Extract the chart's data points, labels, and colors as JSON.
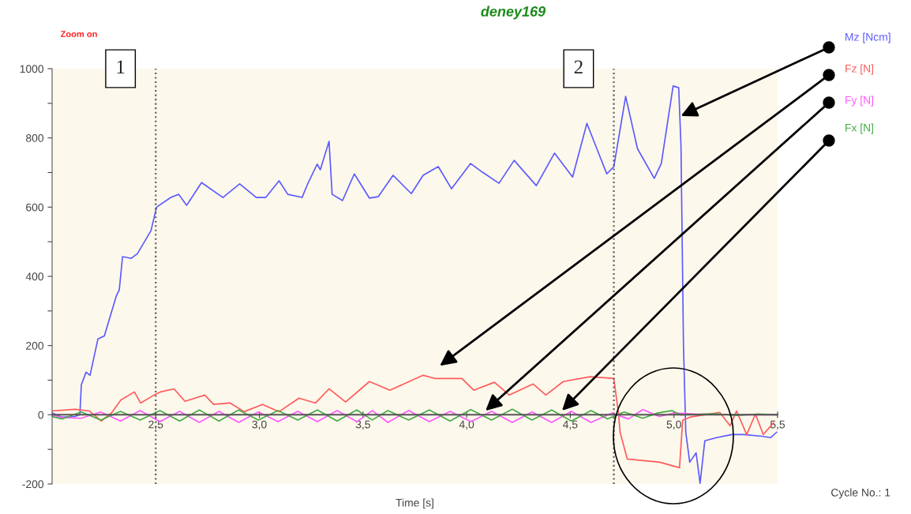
{
  "chart_data": {
    "type": "line",
    "title": "deney169",
    "xlabel": "Time [s]",
    "annotations": [
      "Zoom on",
      "Cycle No.: 1",
      {
        "text": "1",
        "x": 2.5,
        "y": 1000
      },
      {
        "text": "2",
        "x": 4.71,
        "y": 1000
      }
    ],
    "xlim": [
      2.0,
      5.5
    ],
    "xticks": [
      {
        "value": 2.5,
        "label": "2,5"
      },
      {
        "value": 3.0,
        "label": "3,0"
      },
      {
        "value": 3.5,
        "label": "3,5"
      },
      {
        "value": 4.0,
        "label": "4,0"
      },
      {
        "value": 4.5,
        "label": "4,5"
      },
      {
        "value": 5.0,
        "label": "5,0"
      },
      {
        "value": 5.5,
        "label": "5,5"
      }
    ],
    "ylim": [
      -200,
      1000
    ],
    "yticks": [
      -200,
      {
        "value": -100,
        "label": null
      },
      0,
      {
        "value": 100,
        "label": null
      },
      200,
      {
        "value": 300,
        "label": null
      },
      400,
      {
        "value": 500,
        "label": null
      },
      600,
      {
        "value": 700,
        "label": null
      },
      800,
      {
        "value": 900,
        "label": null
      },
      1000
    ],
    "grid": false,
    "legend": "right",
    "line_style": "solid",
    "marker": "none",
    "ref_lines": [
      {
        "axis": "x",
        "value": 2.5,
        "line_style": "dotted",
        "color": "#555555"
      },
      {
        "axis": "x",
        "value": 4.71,
        "line_style": "dotted",
        "color": "#555555"
      }
    ],
    "series": [
      {
        "name": "Mz [Ncm]",
        "color": "#5a5aff",
        "x": [
          2.0,
          2.05,
          2.11,
          2.134,
          2.141,
          2.164,
          2.183,
          2.221,
          2.252,
          2.309,
          2.324,
          2.34,
          2.382,
          2.412,
          2.477,
          2.504,
          2.573,
          2.611,
          2.649,
          2.721,
          2.824,
          2.905,
          2.985,
          3.031,
          3.095,
          3.137,
          3.206,
          3.233,
          3.279,
          3.294,
          3.336,
          3.351,
          3.401,
          3.458,
          3.531,
          3.573,
          3.645,
          3.733,
          3.79,
          3.863,
          3.927,
          4.019,
          4.076,
          4.156,
          4.229,
          4.336,
          4.424,
          4.511,
          4.58,
          4.676,
          4.71,
          4.767,
          4.824,
          4.905,
          4.939,
          4.996,
          5.023,
          5.034,
          5.046,
          5.057,
          5.076,
          5.107,
          5.126,
          5.149,
          5.206,
          5.279,
          5.336,
          5.424,
          5.466,
          5.496
        ],
        "values": [
          5,
          -7,
          -5,
          0,
          87,
          123,
          114,
          219,
          228,
          342,
          361,
          457,
          452,
          466,
          532,
          600,
          628,
          637,
          605,
          671,
          628,
          667,
          628,
          628,
          676,
          637,
          628,
          667,
          724,
          708,
          790,
          637,
          619,
          696,
          626,
          630,
          692,
          639,
          692,
          717,
          653,
          726,
          701,
          669,
          735,
          662,
          756,
          687,
          842,
          696,
          717,
          920,
          769,
          683,
          726,
          950,
          945,
          776,
          201,
          -50,
          -137,
          -110,
          -198,
          -75,
          -66,
          -57,
          -57,
          -62,
          -66,
          -50
        ]
      },
      {
        "name": "Fz [N]",
        "color": "#ff5a5a",
        "x": [
          2.0,
          2.11,
          2.18,
          2.237,
          2.286,
          2.332,
          2.397,
          2.427,
          2.492,
          2.523,
          2.588,
          2.641,
          2.737,
          2.779,
          2.859,
          2.927,
          3.015,
          3.095,
          3.191,
          3.271,
          3.336,
          3.416,
          3.531,
          3.63,
          3.79,
          3.847,
          3.977,
          4.034,
          4.134,
          4.206,
          4.321,
          4.382,
          4.466,
          4.595,
          4.71,
          4.733,
          4.74,
          4.775,
          4.931,
          5.027,
          5.042,
          5.076,
          5.221,
          5.271,
          5.302,
          5.351,
          5.393,
          5.431,
          5.481
        ],
        "values": [
          11,
          16,
          11,
          -18,
          5,
          43,
          66,
          34,
          57,
          66,
          75,
          39,
          57,
          30,
          34,
          9,
          30,
          9,
          48,
          34,
          75,
          37,
          96,
          71,
          114,
          105,
          105,
          71,
          94,
          57,
          89,
          57,
          96,
          110,
          105,
          2,
          -50,
          -128,
          -137,
          -153,
          -16,
          -7,
          7,
          -32,
          11,
          -57,
          2,
          -57,
          -23
        ]
      },
      {
        "name": "Fy [N]",
        "color": "#ff55ff",
        "x": [
          2.0,
          2.05,
          2.14,
          2.235,
          2.33,
          2.425,
          2.52,
          2.615,
          2.71,
          2.805,
          2.9,
          2.995,
          3.09,
          3.185,
          3.28,
          3.375,
          3.47,
          3.545,
          3.62,
          3.72,
          3.82,
          3.92,
          4.02,
          4.12,
          4.22,
          4.315,
          4.41,
          4.505,
          4.6,
          4.7,
          4.78,
          4.85,
          4.93,
          5.0,
          5.1,
          5.3,
          5.5
        ],
        "values": [
          0,
          -8,
          -10,
          8,
          -18,
          12,
          -20,
          10,
          -22,
          10,
          -22,
          8,
          -20,
          10,
          -20,
          12,
          -20,
          12,
          -22,
          12,
          -20,
          10,
          -20,
          10,
          -22,
          8,
          -22,
          10,
          -22,
          5,
          -12,
          15,
          -5,
          5,
          2,
          0,
          0
        ]
      },
      {
        "name": "Fx [N]",
        "color": "#44aa44",
        "x": [
          2.0,
          2.05,
          2.14,
          2.235,
          2.33,
          2.425,
          2.52,
          2.615,
          2.71,
          2.805,
          2.9,
          2.995,
          3.09,
          3.185,
          3.28,
          3.375,
          3.47,
          3.545,
          3.62,
          3.72,
          3.82,
          3.92,
          4.02,
          4.12,
          4.22,
          4.315,
          4.41,
          4.505,
          4.6,
          4.68,
          4.76,
          4.85,
          4.92,
          4.99,
          5.03,
          5.2,
          5.3,
          5.4,
          5.5
        ],
        "values": [
          -5,
          -12,
          8,
          -15,
          10,
          -15,
          12,
          -18,
          14,
          -18,
          14,
          -15,
          12,
          -15,
          14,
          -18,
          14,
          -15,
          12,
          -15,
          14,
          -18,
          15,
          -15,
          16,
          -15,
          14,
          -18,
          12,
          -12,
          8,
          -10,
          5,
          12,
          0,
          3,
          -2,
          2,
          0
        ]
      }
    ]
  }
}
